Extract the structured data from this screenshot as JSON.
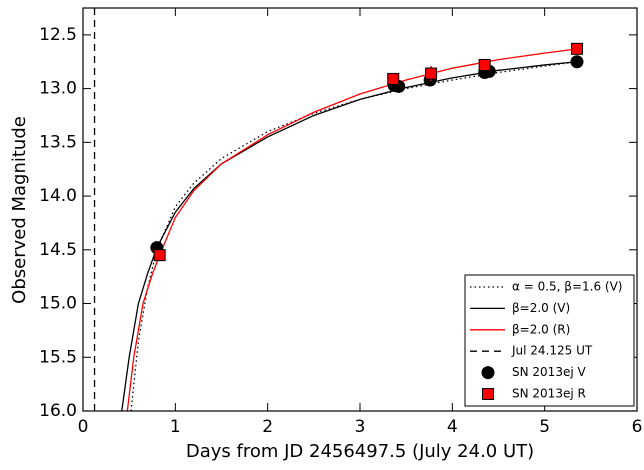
{
  "chart_data": {
    "type": "scatter",
    "x_label": "Days from JD 2456497.5 (July 24.0 UT)",
    "y_label": "Observed Magnitude",
    "xlim": [
      0,
      6
    ],
    "xticks": [
      0,
      1,
      2,
      3,
      4,
      5,
      6
    ],
    "ylim": [
      16.0,
      12.25
    ],
    "yticks": [
      12.5,
      {
        "value": 13,
        "label": "13.0"
      },
      13.5,
      {
        "value": 14,
        "label": "14.0"
      },
      14.5,
      {
        "value": 15,
        "label": "15.0"
      },
      15.5,
      {
        "value": 16,
        "label": "16.0"
      }
    ],
    "series": [
      {
        "name": "α = 0.5, β=1.6 (V)",
        "kind": "line",
        "style": "dotted",
        "color": "#000000",
        "x": [
          0.52,
          0.6,
          0.7,
          0.8,
          1.0,
          1.2,
          1.5,
          2.0,
          2.5,
          3.0,
          3.5,
          4.0,
          4.5,
          5.0,
          5.35
        ],
        "values": [
          16.0,
          15.35,
          14.85,
          14.5,
          14.1,
          13.88,
          13.65,
          13.4,
          13.23,
          13.1,
          13.0,
          12.92,
          12.85,
          12.79,
          12.75
        ]
      },
      {
        "name": "β=2.0 (V)",
        "kind": "line",
        "style": "solid",
        "color": "#000000",
        "x": [
          0.42,
          0.5,
          0.6,
          0.7,
          0.8,
          1.0,
          1.2,
          1.5,
          2.0,
          2.5,
          3.0,
          3.5,
          4.0,
          4.5,
          5.0,
          5.35
        ],
        "values": [
          16.0,
          15.5,
          15.0,
          14.72,
          14.48,
          14.15,
          13.93,
          13.7,
          13.45,
          13.25,
          13.1,
          12.99,
          12.9,
          12.83,
          12.78,
          12.75
        ]
      },
      {
        "name": "β=2.0 (R)",
        "kind": "line",
        "style": "solid",
        "color": "#ff0000",
        "x": [
          0.48,
          0.55,
          0.65,
          0.75,
          0.83,
          1.0,
          1.2,
          1.5,
          2.0,
          2.5,
          3.0,
          3.5,
          4.0,
          4.5,
          5.0,
          5.35
        ],
        "values": [
          16.0,
          15.5,
          15.0,
          14.73,
          14.55,
          14.2,
          13.95,
          13.7,
          13.43,
          13.22,
          13.05,
          12.92,
          12.81,
          12.73,
          12.67,
          12.63
        ]
      },
      {
        "name": "Jul 24.125 UT",
        "kind": "vline",
        "style": "dashed",
        "color": "#000000",
        "x": 0.125
      },
      {
        "name": "SN 2013ej V",
        "kind": "points",
        "marker": "circle",
        "color": "#000000",
        "x": [
          0.8,
          3.37,
          3.42,
          3.76,
          4.35,
          4.4,
          5.35
        ],
        "values": [
          14.48,
          12.97,
          12.98,
          12.92,
          12.85,
          12.84,
          12.75
        ],
        "errors": [
          0.03,
          0.02,
          0.02,
          0.04,
          0.02,
          0.02,
          0.02
        ]
      },
      {
        "name": "SN 2013ej R",
        "kind": "points",
        "marker": "square",
        "color": "#ff0000",
        "x": [
          0.83,
          3.36,
          3.77,
          4.35,
          5.35
        ],
        "values": [
          14.55,
          12.91,
          12.86,
          12.78,
          12.63
        ],
        "errors": [
          0.02,
          0.02,
          0.07,
          0.02,
          0.02
        ]
      }
    ]
  }
}
